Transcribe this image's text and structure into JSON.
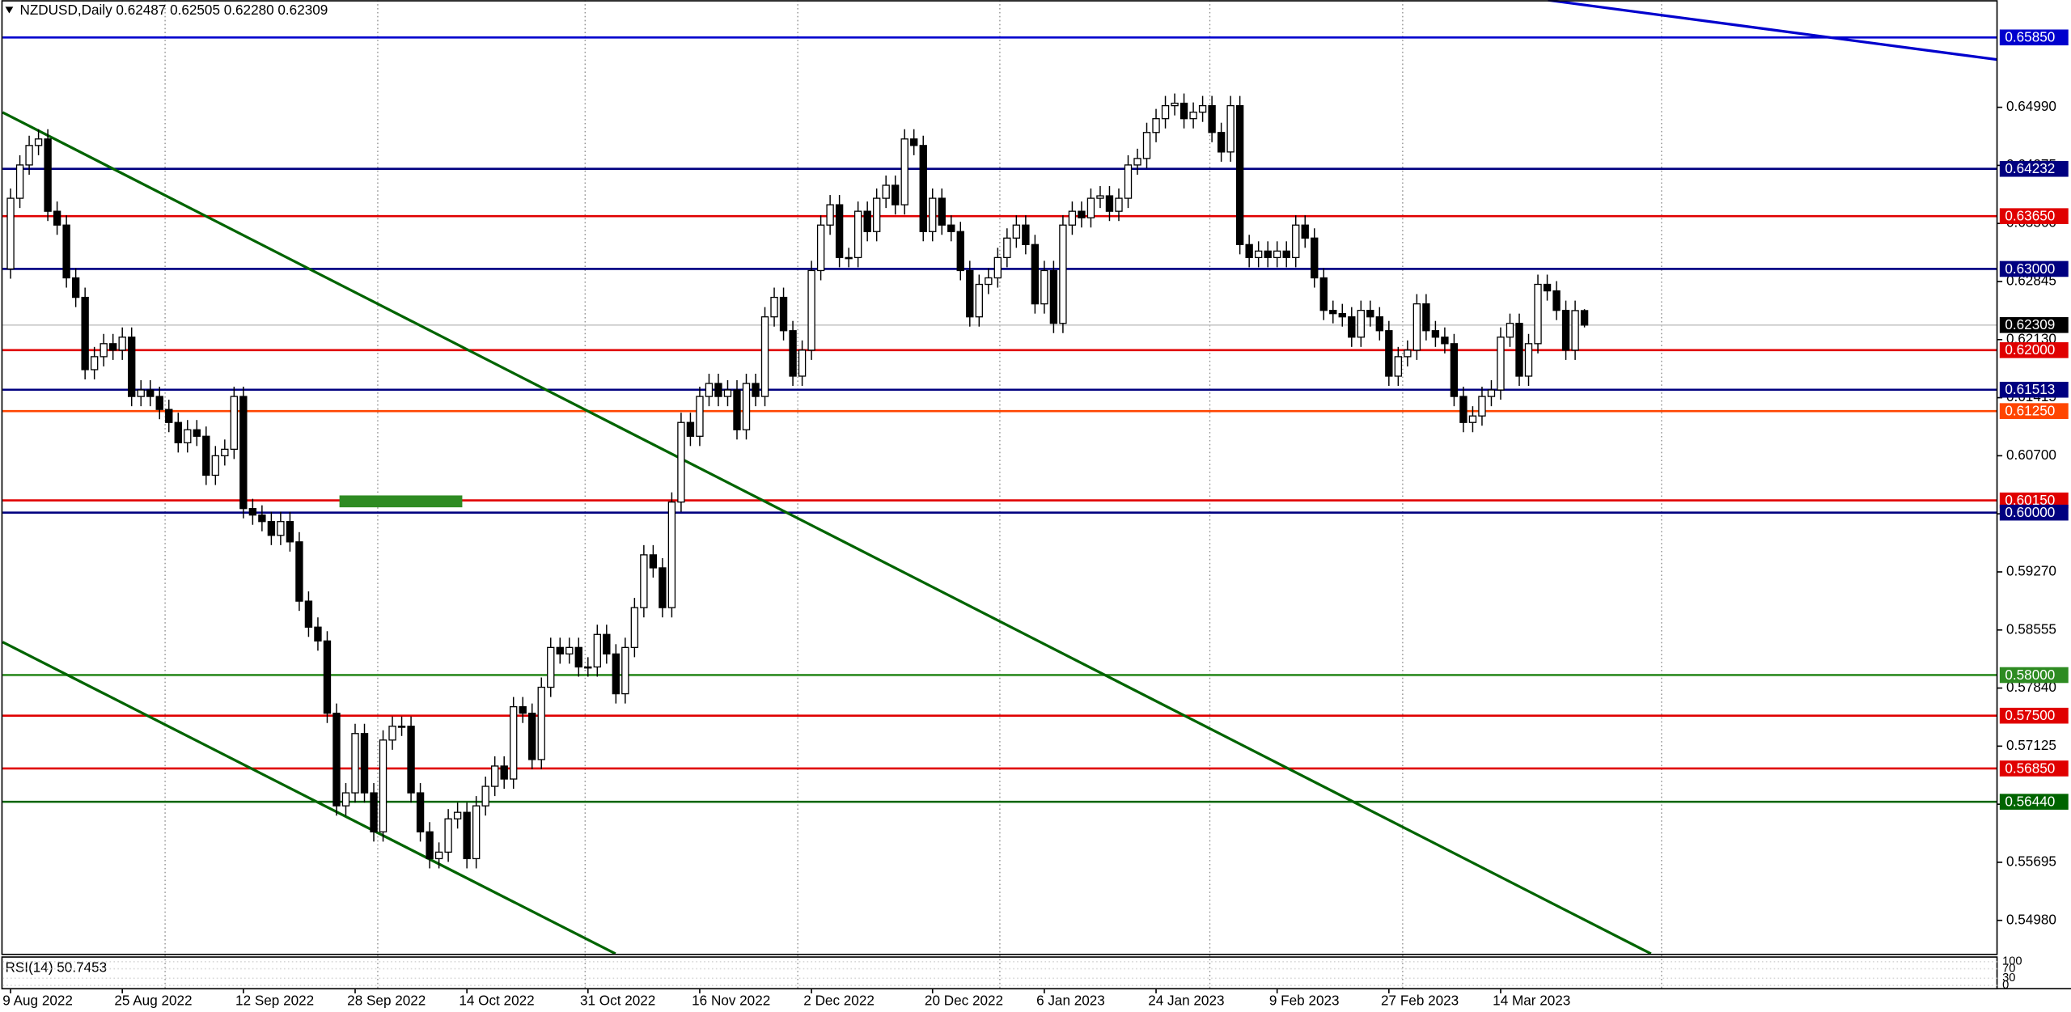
{
  "chart_data": {
    "type": "candlestick",
    "title": "NZDUSD,Daily  0.62487 0.62505 0.62280 0.62309",
    "xlim": [
      -0.85,
      213.3
    ],
    "ylim": [
      0.54553,
      0.66309
    ],
    "xticks": [
      {
        "value": 0,
        "label": "9 Aug 2022"
      },
      {
        "value": 12,
        "label": "25 Aug 2022"
      },
      {
        "value": 25,
        "label": "12 Sep 2022"
      },
      {
        "value": 37,
        "label": "28 Sep 2022"
      },
      {
        "value": 49,
        "label": "14 Oct 2022"
      },
      {
        "value": 62,
        "label": "31 Oct 2022"
      },
      {
        "value": 74,
        "label": "16 Nov 2022"
      },
      {
        "value": 86,
        "label": "2 Dec 2022"
      },
      {
        "value": 99,
        "label": "20 Dec 2022"
      },
      {
        "value": 111,
        "label": "6 Jan 2023"
      },
      {
        "value": 123,
        "label": "24 Jan 2023"
      },
      {
        "value": 136,
        "label": "9 Feb 2023"
      },
      {
        "value": 148,
        "label": "27 Feb 2023"
      },
      {
        "value": 160,
        "label": "14 Mar 2023"
      }
    ],
    "yticks": [
      {
        "value": 0.6499,
        "label": "0.64990"
      },
      {
        "value": 0.64275,
        "label": "0.64275"
      },
      {
        "value": 0.6356,
        "label": "0.63560"
      },
      {
        "value": 0.62845,
        "label": "0.62845"
      },
      {
        "value": 0.6213,
        "label": "0.62130"
      },
      {
        "value": 0.61415,
        "label": "0.61415"
      },
      {
        "value": 0.607,
        "label": "0.60700"
      },
      {
        "value": 0.59985,
        "label": "0.59985"
      },
      {
        "value": 0.5927,
        "label": "0.59270"
      },
      {
        "value": 0.58555,
        "label": "0.58555"
      },
      {
        "value": 0.5784,
        "label": "0.57840"
      },
      {
        "value": 0.57125,
        "label": "0.57125"
      },
      {
        "value": 0.5641,
        "label": "0.56410"
      },
      {
        "value": 0.55695,
        "label": "0.55695"
      },
      {
        "value": 0.5498,
        "label": "0.54980"
      }
    ],
    "bull_color": "#ffffff",
    "bear_color": "#000000",
    "levels": [
      {
        "value": 0.6585,
        "label": "0.65850",
        "color": "#0000cd"
      },
      {
        "value": 0.64232,
        "label": "0.64232",
        "color": "#000080"
      },
      {
        "value": 0.6365,
        "label": "0.63650",
        "color": "#e00000"
      },
      {
        "value": 0.63,
        "label": "0.63000",
        "color": "#000080"
      },
      {
        "value": 0.62309,
        "label": "0.62309",
        "color": "#000000"
      },
      {
        "value": 0.62,
        "label": "0.62000",
        "color": "#e00000"
      },
      {
        "value": 0.61513,
        "label": "0.61513",
        "color": "#000080"
      },
      {
        "value": 0.6125,
        "label": "0.61250",
        "color": "#ff4500"
      },
      {
        "value": 0.6015,
        "label": "0.60150",
        "color": "#e00000"
      },
      {
        "value": 0.6,
        "label": "0.60000",
        "color": "#000080"
      },
      {
        "value": 0.58,
        "label": "0.58000",
        "color": "#2e8b22"
      },
      {
        "value": 0.575,
        "label": "0.57500",
        "color": "#e00000"
      },
      {
        "value": 0.5685,
        "label": "0.56850",
        "color": "#e00000"
      },
      {
        "value": 0.5644,
        "label": "0.56440",
        "color": "#006400"
      }
    ],
    "ohlc": [
      [
        0.63,
        0.6399,
        0.6288,
        0.6387
      ],
      [
        0.6387,
        0.644,
        0.6375,
        0.6428
      ],
      [
        0.6428,
        0.6464,
        0.6416,
        0.6452
      ],
      [
        0.6452,
        0.6472,
        0.644,
        0.646
      ],
      [
        0.646,
        0.6472,
        0.6359,
        0.6371
      ],
      [
        0.6371,
        0.6383,
        0.6342,
        0.6354
      ],
      [
        0.6354,
        0.6366,
        0.6277,
        0.6289
      ],
      [
        0.6289,
        0.6301,
        0.6253,
        0.6265
      ],
      [
        0.6265,
        0.6277,
        0.6164,
        0.6176
      ],
      [
        0.6176,
        0.6204,
        0.6164,
        0.6192
      ],
      [
        0.6192,
        0.622,
        0.618,
        0.6208
      ],
      [
        0.6208,
        0.622,
        0.6188,
        0.62
      ],
      [
        0.62,
        0.6228,
        0.6188,
        0.6216
      ],
      [
        0.6216,
        0.6228,
        0.6131,
        0.6143
      ],
      [
        0.6143,
        0.6163,
        0.6131,
        0.6151
      ],
      [
        0.6151,
        0.6163,
        0.6131,
        0.6143
      ],
      [
        0.6143,
        0.6155,
        0.6115,
        0.6127
      ],
      [
        0.6127,
        0.6139,
        0.6099,
        0.6111
      ],
      [
        0.6111,
        0.6123,
        0.6074,
        0.6086
      ],
      [
        0.6086,
        0.6114,
        0.6074,
        0.6102
      ],
      [
        0.6102,
        0.6114,
        0.6082,
        0.6094
      ],
      [
        0.6094,
        0.6106,
        0.6034,
        0.6046
      ],
      [
        0.6046,
        0.6082,
        0.6034,
        0.607
      ],
      [
        0.607,
        0.609,
        0.6058,
        0.6078
      ],
      [
        0.6078,
        0.6155,
        0.6066,
        0.6143
      ],
      [
        0.6143,
        0.6155,
        0.5993,
        0.6005
      ],
      [
        0.6005,
        0.6017,
        0.5985,
        0.5997
      ],
      [
        0.5997,
        0.6009,
        0.5977,
        0.5989
      ],
      [
        0.5989,
        0.6001,
        0.596,
        0.5972
      ],
      [
        0.5972,
        0.6001,
        0.596,
        0.5989
      ],
      [
        0.5989,
        0.6001,
        0.5952,
        0.5964
      ],
      [
        0.5964,
        0.5976,
        0.5879,
        0.5891
      ],
      [
        0.5891,
        0.5903,
        0.5847,
        0.5859
      ],
      [
        0.5859,
        0.5871,
        0.583,
        0.5842
      ],
      [
        0.5842,
        0.5854,
        0.5741,
        0.5753
      ],
      [
        0.5753,
        0.5765,
        0.5627,
        0.5639
      ],
      [
        0.5639,
        0.5667,
        0.5627,
        0.5655
      ],
      [
        0.5655,
        0.574,
        0.5643,
        0.5728
      ],
      [
        0.5728,
        0.574,
        0.5643,
        0.5655
      ],
      [
        0.5655,
        0.5667,
        0.5595,
        0.5607
      ],
      [
        0.5607,
        0.5732,
        0.5595,
        0.572
      ],
      [
        0.572,
        0.5749,
        0.5708,
        0.5737
      ],
      [
        0.5737,
        0.5749,
        0.5725,
        0.5737
      ],
      [
        0.5737,
        0.5749,
        0.5643,
        0.5655
      ],
      [
        0.5655,
        0.5667,
        0.5595,
        0.5607
      ],
      [
        0.5607,
        0.5619,
        0.5562,
        0.5574
      ],
      [
        0.5574,
        0.5594,
        0.5562,
        0.5582
      ],
      [
        0.5582,
        0.5635,
        0.557,
        0.5623
      ],
      [
        0.5623,
        0.5643,
        0.5611,
        0.5631
      ],
      [
        0.5631,
        0.5643,
        0.5562,
        0.5574
      ],
      [
        0.5574,
        0.5651,
        0.5562,
        0.5639
      ],
      [
        0.5639,
        0.5675,
        0.5627,
        0.5663
      ],
      [
        0.5663,
        0.57,
        0.5651,
        0.5688
      ],
      [
        0.5688,
        0.57,
        0.566,
        0.5672
      ],
      [
        0.5672,
        0.5773,
        0.566,
        0.5761
      ],
      [
        0.5761,
        0.5773,
        0.5741,
        0.5753
      ],
      [
        0.5753,
        0.5765,
        0.5684,
        0.5696
      ],
      [
        0.5696,
        0.5797,
        0.5684,
        0.5785
      ],
      [
        0.5785,
        0.5846,
        0.5773,
        0.5834
      ],
      [
        0.5834,
        0.5846,
        0.5814,
        0.5826
      ],
      [
        0.5826,
        0.5846,
        0.5814,
        0.5834
      ],
      [
        0.5834,
        0.5846,
        0.5798,
        0.581
      ],
      [
        0.581,
        0.5822,
        0.5798,
        0.581
      ],
      [
        0.581,
        0.5862,
        0.5798,
        0.585
      ],
      [
        0.585,
        0.5862,
        0.5814,
        0.5826
      ],
      [
        0.5826,
        0.5838,
        0.5765,
        0.5777
      ],
      [
        0.5777,
        0.5846,
        0.5765,
        0.5834
      ],
      [
        0.5834,
        0.5895,
        0.5822,
        0.5883
      ],
      [
        0.5883,
        0.596,
        0.5871,
        0.5948
      ],
      [
        0.5948,
        0.596,
        0.592,
        0.5932
      ],
      [
        0.5932,
        0.5944,
        0.5871,
        0.5883
      ],
      [
        0.5883,
        0.6025,
        0.5871,
        0.6013
      ],
      [
        0.6013,
        0.6123,
        0.6001,
        0.6111
      ],
      [
        0.6111,
        0.6123,
        0.6082,
        0.6094
      ],
      [
        0.6094,
        0.6155,
        0.6082,
        0.6143
      ],
      [
        0.6143,
        0.6171,
        0.6131,
        0.6159
      ],
      [
        0.6159,
        0.6171,
        0.6131,
        0.6143
      ],
      [
        0.6143,
        0.6163,
        0.6131,
        0.6151
      ],
      [
        0.6151,
        0.6163,
        0.609,
        0.6102
      ],
      [
        0.6102,
        0.6171,
        0.609,
        0.6159
      ],
      [
        0.6159,
        0.6171,
        0.6131,
        0.6143
      ],
      [
        0.6143,
        0.6253,
        0.6131,
        0.6241
      ],
      [
        0.6241,
        0.6277,
        0.6229,
        0.6265
      ],
      [
        0.6265,
        0.6277,
        0.6212,
        0.6224
      ],
      [
        0.6224,
        0.6236,
        0.6156,
        0.6168
      ],
      [
        0.6168,
        0.6212,
        0.6156,
        0.62
      ],
      [
        0.62,
        0.631,
        0.6188,
        0.6298
      ],
      [
        0.6298,
        0.6366,
        0.6286,
        0.6354
      ],
      [
        0.6354,
        0.6391,
        0.6342,
        0.6379
      ],
      [
        0.6379,
        0.6391,
        0.6302,
        0.6314
      ],
      [
        0.6314,
        0.6326,
        0.6302,
        0.6314
      ],
      [
        0.6314,
        0.6383,
        0.6302,
        0.6371
      ],
      [
        0.6371,
        0.6383,
        0.6334,
        0.6346
      ],
      [
        0.6346,
        0.6399,
        0.6334,
        0.6387
      ],
      [
        0.6387,
        0.6415,
        0.6375,
        0.6403
      ],
      [
        0.6403,
        0.6415,
        0.6367,
        0.6379
      ],
      [
        0.6379,
        0.6472,
        0.6367,
        0.646
      ],
      [
        0.646,
        0.6472,
        0.644,
        0.6452
      ],
      [
        0.6452,
        0.6464,
        0.6334,
        0.6346
      ],
      [
        0.6346,
        0.6399,
        0.6334,
        0.6387
      ],
      [
        0.6387,
        0.6399,
        0.6342,
        0.6354
      ],
      [
        0.6354,
        0.6366,
        0.6334,
        0.6346
      ],
      [
        0.6346,
        0.6358,
        0.6286,
        0.6298
      ],
      [
        0.6298,
        0.631,
        0.6229,
        0.6241
      ],
      [
        0.6241,
        0.6293,
        0.6229,
        0.6281
      ],
      [
        0.6281,
        0.6301,
        0.6269,
        0.6289
      ],
      [
        0.6289,
        0.6326,
        0.6277,
        0.6314
      ],
      [
        0.6314,
        0.635,
        0.6302,
        0.6338
      ],
      [
        0.6338,
        0.6366,
        0.6326,
        0.6354
      ],
      [
        0.6354,
        0.6366,
        0.6318,
        0.633
      ],
      [
        0.633,
        0.6342,
        0.6245,
        0.6257
      ],
      [
        0.6257,
        0.631,
        0.6245,
        0.6298
      ],
      [
        0.6298,
        0.631,
        0.6221,
        0.6233
      ],
      [
        0.6233,
        0.6366,
        0.6221,
        0.6354
      ],
      [
        0.6354,
        0.6383,
        0.6342,
        0.6371
      ],
      [
        0.6371,
        0.6383,
        0.6351,
        0.6363
      ],
      [
        0.6363,
        0.6399,
        0.6351,
        0.6387
      ],
      [
        0.6387,
        0.6402,
        0.6375,
        0.639
      ],
      [
        0.639,
        0.6402,
        0.6359,
        0.6371
      ],
      [
        0.6371,
        0.6399,
        0.6359,
        0.6387
      ],
      [
        0.6387,
        0.644,
        0.6375,
        0.6428
      ],
      [
        0.6428,
        0.6448,
        0.6416,
        0.6436
      ],
      [
        0.6436,
        0.648,
        0.6424,
        0.6468
      ],
      [
        0.6468,
        0.6497,
        0.6456,
        0.6485
      ],
      [
        0.6485,
        0.6513,
        0.6473,
        0.6501
      ],
      [
        0.6501,
        0.6516,
        0.6489,
        0.6504
      ],
      [
        0.6504,
        0.6516,
        0.6473,
        0.6485
      ],
      [
        0.6485,
        0.6505,
        0.6473,
        0.6493
      ],
      [
        0.6493,
        0.6513,
        0.6481,
        0.6501
      ],
      [
        0.6501,
        0.6513,
        0.6456,
        0.6468
      ],
      [
        0.6468,
        0.648,
        0.6432,
        0.6444
      ],
      [
        0.6444,
        0.6513,
        0.6432,
        0.6501
      ],
      [
        0.6501,
        0.6513,
        0.6318,
        0.633
      ],
      [
        0.633,
        0.6342,
        0.6302,
        0.6314
      ],
      [
        0.6314,
        0.6334,
        0.6302,
        0.6322
      ],
      [
        0.6322,
        0.6334,
        0.6302,
        0.6314
      ],
      [
        0.6314,
        0.6334,
        0.6302,
        0.6322
      ],
      [
        0.6322,
        0.6334,
        0.6302,
        0.6314
      ],
      [
        0.6314,
        0.6366,
        0.6302,
        0.6354
      ],
      [
        0.6354,
        0.6366,
        0.6326,
        0.6338
      ],
      [
        0.6338,
        0.635,
        0.6277,
        0.6289
      ],
      [
        0.6289,
        0.6301,
        0.6237,
        0.6249
      ],
      [
        0.6249,
        0.6261,
        0.6233,
        0.6245
      ],
      [
        0.6245,
        0.6257,
        0.6229,
        0.6241
      ],
      [
        0.6241,
        0.6253,
        0.6204,
        0.6216
      ],
      [
        0.6216,
        0.6261,
        0.6204,
        0.6249
      ],
      [
        0.6249,
        0.6261,
        0.6229,
        0.6241
      ],
      [
        0.6241,
        0.6253,
        0.6212,
        0.6224
      ],
      [
        0.6224,
        0.6236,
        0.6156,
        0.6168
      ],
      [
        0.6168,
        0.6204,
        0.6156,
        0.6192
      ],
      [
        0.6192,
        0.6212,
        0.618,
        0.62
      ],
      [
        0.62,
        0.6269,
        0.6188,
        0.6257
      ],
      [
        0.6257,
        0.6269,
        0.6212,
        0.6224
      ],
      [
        0.6224,
        0.6236,
        0.6204,
        0.6216
      ],
      [
        0.6216,
        0.6228,
        0.6196,
        0.6208
      ],
      [
        0.6208,
        0.622,
        0.6131,
        0.6143
      ],
      [
        0.6143,
        0.6155,
        0.6099,
        0.6111
      ],
      [
        0.6111,
        0.6131,
        0.6099,
        0.6119
      ],
      [
        0.6119,
        0.6155,
        0.6107,
        0.6143
      ],
      [
        0.6143,
        0.6163,
        0.6131,
        0.6151
      ],
      [
        0.6151,
        0.6228,
        0.6139,
        0.6216
      ],
      [
        0.6216,
        0.6245,
        0.6204,
        0.6233
      ],
      [
        0.6233,
        0.6245,
        0.6156,
        0.6168
      ],
      [
        0.6168,
        0.622,
        0.6156,
        0.6208
      ],
      [
        0.6208,
        0.6293,
        0.6196,
        0.6281
      ],
      [
        0.6281,
        0.6293,
        0.6261,
        0.6273
      ],
      [
        0.6273,
        0.6285,
        0.6237,
        0.6249
      ],
      [
        0.6249,
        0.6261,
        0.6188,
        0.62
      ],
      [
        0.62,
        0.6261,
        0.6188,
        0.62487
      ],
      [
        0.62487,
        0.62505,
        0.6228,
        0.62309
      ]
    ],
    "rsi": {
      "label": "RSI(14) 50.7453",
      "ylim": [
        0,
        100
      ],
      "yticks": [
        100,
        70,
        30,
        0
      ]
    }
  }
}
